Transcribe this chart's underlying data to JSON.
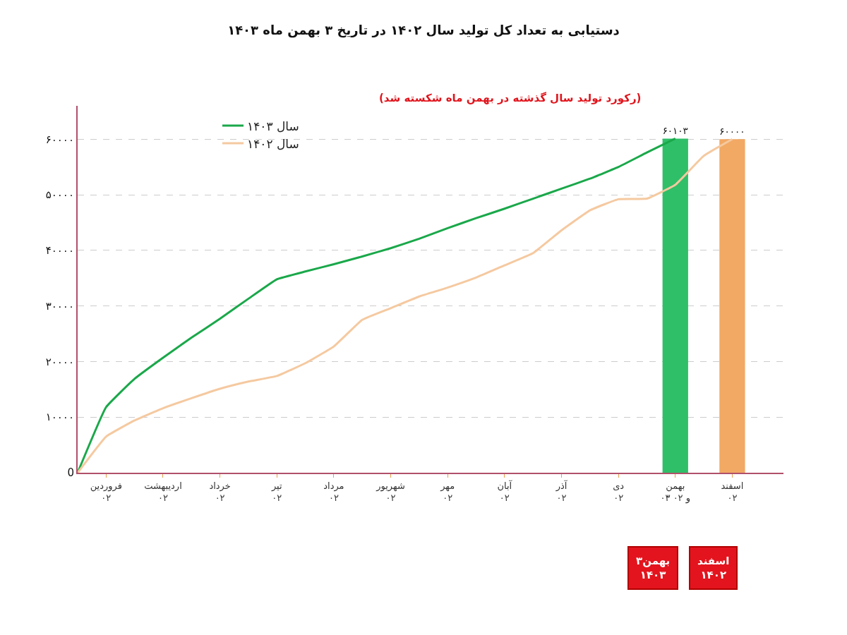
{
  "chart_data": {
    "type": "line",
    "title": "دستیابی به تعداد کل تولید سال ۱۴۰۲ در تاریخ ۳ بهمن ماه ۱۴۰۳",
    "categories": [
      null,
      "فروردین\n۰۲",
      null,
      "اردیبهشت\n۰۲",
      null,
      "خرداد\n۰۲",
      null,
      "تیر\n۰۲",
      null,
      "مرداد\n۰۲",
      null,
      "شهریور\n۰۲",
      null,
      "مهر\n۰۲",
      null,
      "آبان\n۰۲",
      null,
      "آذر\n۰۲",
      null,
      "دی\n۰۲",
      null,
      "بهمن\n۰۳ و ۰۲",
      null,
      "اسفند\n۰۲"
    ],
    "ylim": [
      0,
      66000
    ],
    "yticks": [
      {
        "value": 0,
        "label": "0"
      },
      {
        "value": 10000,
        "label": "۱۰۰۰۰"
      },
      {
        "value": 20000,
        "label": "۲۰۰۰۰"
      },
      {
        "value": 30000,
        "label": "۳۰۰۰۰"
      },
      {
        "value": 40000,
        "label": "۴۰۰۰۰"
      },
      {
        "value": 50000,
        "label": "۵۰۰۰۰"
      },
      {
        "value": 60000,
        "label": "۶۰۰۰۰"
      }
    ],
    "grid": "y",
    "legend": "top left",
    "series": [
      {
        "type": "bar",
        "color": "#2fbf68",
        "values": [
          null,
          null,
          null,
          null,
          null,
          null,
          null,
          null,
          null,
          null,
          null,
          null,
          null,
          null,
          null,
          null,
          null,
          null,
          null,
          null,
          null,
          60103,
          null,
          null
        ],
        "value_labels": [
          null,
          null,
          null,
          null,
          null,
          null,
          null,
          null,
          null,
          null,
          null,
          null,
          null,
          null,
          null,
          null,
          null,
          null,
          null,
          null,
          null,
          "۶۰۱۰۳",
          null,
          null
        ]
      },
      {
        "type": "bar",
        "color": "#f2a964",
        "values": [
          null,
          null,
          null,
          null,
          null,
          null,
          null,
          null,
          null,
          null,
          null,
          null,
          null,
          null,
          null,
          null,
          null,
          null,
          null,
          null,
          null,
          null,
          null,
          60000
        ],
        "value_labels": [
          null,
          null,
          null,
          null,
          null,
          null,
          null,
          null,
          null,
          null,
          null,
          null,
          null,
          null,
          null,
          null,
          null,
          null,
          null,
          null,
          null,
          null,
          null,
          "۶۰۰۰۰"
        ]
      },
      {
        "name": "سال ۱۴۰۳",
        "color": "#1aa84a",
        "values": [
          0,
          11800,
          16900,
          20700,
          24300,
          27700,
          31300,
          34800,
          36200,
          37500,
          38900,
          40400,
          42100,
          44000,
          45800,
          47500,
          49300,
          51100,
          52900,
          55000,
          57600,
          60103,
          null,
          null
        ]
      },
      {
        "name": "سال ۱۴۰۲",
        "color": "#f5c9a0",
        "values": [
          0,
          6500,
          9400,
          11600,
          13400,
          15100,
          16400,
          17400,
          19700,
          22700,
          27500,
          29600,
          31700,
          33300,
          35100,
          37300,
          39500,
          43600,
          47200,
          49200,
          49300,
          51800,
          57000,
          60000
        ]
      }
    ],
    "annotations": [
      "(رکورد تولید سال گذشته در بهمن ماه شکسته شد)",
      "۳بهمن\n۱۴۰۳",
      "اسفند\n۱۴۰۲"
    ]
  }
}
